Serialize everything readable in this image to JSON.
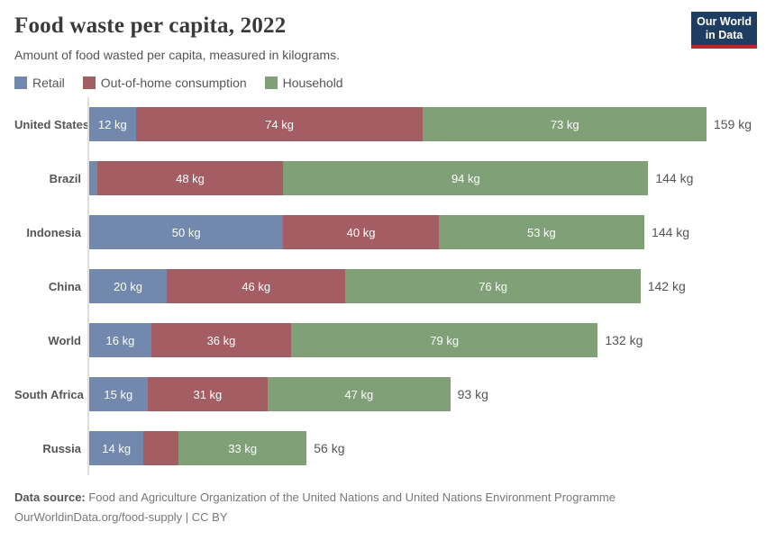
{
  "header": {
    "title": "Food waste per capita, 2022",
    "subtitle": "Amount of food wasted per capita, measured in kilograms."
  },
  "logo": {
    "line1": "Our World",
    "line2": "in Data",
    "background": "#1d3d63",
    "underline": "#c0262d"
  },
  "legend": {
    "items": [
      {
        "label": "Retail",
        "color": "#7288ad"
      },
      {
        "label": "Out-of-home consumption",
        "color": "#a35d63"
      },
      {
        "label": "Household",
        "color": "#80a077"
      }
    ]
  },
  "chart_data": {
    "type": "bar",
    "orientation": "horizontal",
    "stacked": true,
    "unit": "kg",
    "grid": false,
    "xlim": [
      0,
      159
    ],
    "categories": [
      "United States",
      "Brazil",
      "Indonesia",
      "China",
      "World",
      "South Africa",
      "Russia"
    ],
    "series": [
      {
        "name": "Retail",
        "color": "#7288ad",
        "values": [
          12,
          2,
          50,
          20,
          16,
          15,
          14
        ]
      },
      {
        "name": "Out-of-home consumption",
        "color": "#a35d63",
        "values": [
          74,
          48,
          40,
          46,
          36,
          31,
          9
        ]
      },
      {
        "name": "Household",
        "color": "#80a077",
        "values": [
          73,
          94,
          53,
          76,
          79,
          47,
          33
        ]
      }
    ],
    "segment_labels": [
      [
        "12 kg",
        "74 kg",
        "73 kg"
      ],
      [
        "",
        "48 kg",
        "94 kg"
      ],
      [
        "50 kg",
        "40 kg",
        "53 kg"
      ],
      [
        "20 kg",
        "46 kg",
        "76 kg"
      ],
      [
        "16 kg",
        "36 kg",
        "79 kg"
      ],
      [
        "15 kg",
        "31 kg",
        "47 kg"
      ],
      [
        "14 kg",
        "",
        "33 kg"
      ]
    ],
    "totals": [
      159,
      144,
      144,
      142,
      132,
      93,
      56
    ],
    "total_labels": [
      "159 kg",
      "144 kg",
      "144 kg",
      "142 kg",
      "132 kg",
      "93 kg",
      "56 kg"
    ]
  },
  "footer": {
    "datasource_label": "Data source:",
    "datasource_text": " Food and Agriculture Organization of the United Nations and United Nations Environment Programme",
    "license_line": "OurWorldinData.org/food-supply | CC BY"
  }
}
